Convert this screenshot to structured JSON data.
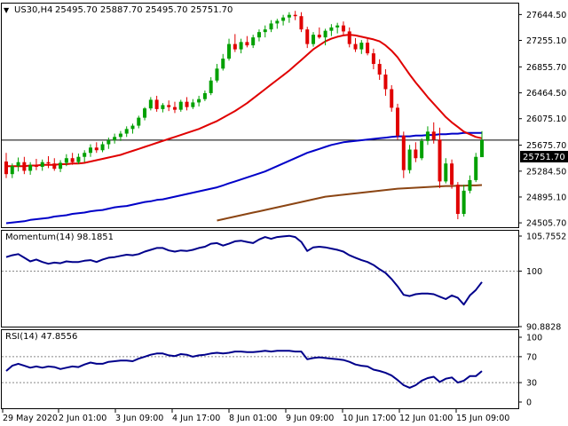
{
  "header": {
    "symbol_label": "US30,H4",
    "ohlc_label": "25495.70 25887.70 25495.70 25751.70"
  },
  "current_price_label": "25751.70",
  "colors": {
    "bull": "#00a000",
    "bear": "#e00000",
    "ma_fast": "#e00000",
    "ma_mid": "#0000c8",
    "ma_slow": "#8b4513",
    "indicator": "#00008b",
    "price_tag_bg": "#000000",
    "price_tag_text": "#ffffff"
  },
  "chart_data": [
    {
      "type": "candlestick",
      "title": "US30,H4",
      "ylim": [
        24440,
        27810
      ],
      "y_ticks": [
        "27644.50",
        "27255.10",
        "26855.70",
        "26464.50",
        "26075.10",
        "25675.70",
        "25284.50",
        "24895.10",
        "24505.70"
      ],
      "x_ticks": [
        "29 May 2020",
        "2 Jun 01:00",
        "3 Jun 09:00",
        "4 Jun 17:00",
        "8 Jun 01:00",
        "9 Jun 09:00",
        "10 Jun 17:00",
        "12 Jun 01:00",
        "15 Jun 09:00"
      ],
      "ohlc": [
        [
          25430,
          25560,
          25180,
          25240
        ],
        [
          25240,
          25400,
          25180,
          25360
        ],
        [
          25360,
          25490,
          25280,
          25420
        ],
        [
          25420,
          25500,
          25240,
          25290
        ],
        [
          25290,
          25420,
          25230,
          25380
        ],
        [
          25380,
          25470,
          25300,
          25350
        ],
        [
          25350,
          25460,
          25290,
          25420
        ],
        [
          25420,
          25510,
          25330,
          25400
        ],
        [
          25400,
          25480,
          25290,
          25320
        ],
        [
          25320,
          25450,
          25270,
          25410
        ],
        [
          25410,
          25540,
          25360,
          25480
        ],
        [
          25480,
          25560,
          25380,
          25420
        ],
        [
          25420,
          25550,
          25390,
          25500
        ],
        [
          25500,
          25600,
          25420,
          25560
        ],
        [
          25560,
          25690,
          25500,
          25640
        ],
        [
          25640,
          25720,
          25560,
          25600
        ],
        [
          25600,
          25730,
          25570,
          25690
        ],
        [
          25690,
          25790,
          25620,
          25750
        ],
        [
          25750,
          25850,
          25700,
          25800
        ],
        [
          25800,
          25890,
          25740,
          25850
        ],
        [
          25850,
          25960,
          25800,
          25920
        ],
        [
          25920,
          26000,
          25850,
          25970
        ],
        [
          25970,
          26120,
          25930,
          26090
        ],
        [
          26090,
          26250,
          26050,
          26230
        ],
        [
          26230,
          26400,
          26200,
          26360
        ],
        [
          26360,
          26420,
          26180,
          26220
        ],
        [
          26220,
          26310,
          26170,
          26280
        ],
        [
          26280,
          26350,
          26190,
          26250
        ],
        [
          26250,
          26330,
          26160,
          26210
        ],
        [
          26210,
          26360,
          26180,
          26330
        ],
        [
          26330,
          26400,
          26200,
          26250
        ],
        [
          26250,
          26370,
          26220,
          26320
        ],
        [
          26320,
          26420,
          26260,
          26370
        ],
        [
          26370,
          26500,
          26340,
          26460
        ],
        [
          26460,
          26700,
          26430,
          26650
        ],
        [
          26650,
          26900,
          26620,
          26830
        ],
        [
          26830,
          27050,
          26800,
          26980
        ],
        [
          26980,
          27280,
          26950,
          27200
        ],
        [
          27200,
          27350,
          27080,
          27120
        ],
        [
          27120,
          27280,
          27060,
          27230
        ],
        [
          27230,
          27320,
          27150,
          27180
        ],
        [
          27180,
          27340,
          27140,
          27300
        ],
        [
          27300,
          27420,
          27240,
          27380
        ],
        [
          27380,
          27480,
          27300,
          27420
        ],
        [
          27420,
          27560,
          27380,
          27510
        ],
        [
          27510,
          27580,
          27430,
          27550
        ],
        [
          27550,
          27640,
          27480,
          27600
        ],
        [
          27600,
          27680,
          27520,
          27640
        ],
        [
          27640,
          27700,
          27560,
          27620
        ],
        [
          27620,
          27680,
          27380,
          27420
        ],
        [
          27420,
          27460,
          27140,
          27200
        ],
        [
          27200,
          27380,
          27160,
          27340
        ],
        [
          27340,
          27450,
          27280,
          27300
        ],
        [
          27300,
          27430,
          27180,
          27400
        ],
        [
          27400,
          27500,
          27320,
          27450
        ],
        [
          27450,
          27520,
          27360,
          27480
        ],
        [
          27480,
          27540,
          27330,
          27390
        ],
        [
          27390,
          27450,
          27150,
          27200
        ],
        [
          27200,
          27290,
          27080,
          27120
        ],
        [
          27120,
          27260,
          27050,
          27220
        ],
        [
          27220,
          27290,
          27030,
          27060
        ],
        [
          27060,
          27130,
          26820,
          26900
        ],
        [
          26900,
          26970,
          26660,
          26740
        ],
        [
          26740,
          26820,
          26420,
          26520
        ],
        [
          26520,
          26580,
          26180,
          26240
        ],
        [
          26240,
          26300,
          25760,
          25820
        ],
        [
          25820,
          25880,
          25180,
          25300
        ],
        [
          25300,
          25680,
          25250,
          25610
        ],
        [
          25610,
          25720,
          25420,
          25480
        ],
        [
          25480,
          25780,
          25450,
          25740
        ],
        [
          25740,
          25960,
          25680,
          25880
        ],
        [
          25880,
          26020,
          25700,
          25760
        ],
        [
          25760,
          25940,
          25030,
          25130
        ],
        [
          25130,
          25480,
          25100,
          25400
        ],
        [
          25400,
          25460,
          25020,
          25080
        ],
        [
          25080,
          25120,
          24560,
          24640
        ],
        [
          24640,
          25080,
          24600,
          24990
        ],
        [
          24990,
          25220,
          24950,
          25150
        ],
        [
          25150,
          25560,
          25120,
          25500
        ],
        [
          25495.7,
          25887.7,
          25495.7,
          25751.7
        ]
      ],
      "ma_fast": [
        25360,
        25360,
        25360,
        25360,
        25370,
        25370,
        25380,
        25380,
        25380,
        25390,
        25390,
        25400,
        25400,
        25410,
        25430,
        25450,
        25470,
        25490,
        25510,
        25530,
        25560,
        25590,
        25620,
        25650,
        25680,
        25710,
        25740,
        25770,
        25800,
        25830,
        25860,
        25890,
        25920,
        25960,
        26000,
        26040,
        26090,
        26140,
        26190,
        26250,
        26310,
        26380,
        26450,
        26520,
        26590,
        26660,
        26730,
        26800,
        26880,
        26960,
        27040,
        27120,
        27180,
        27240,
        27280,
        27310,
        27330,
        27340,
        27330,
        27310,
        27290,
        27270,
        27240,
        27180,
        27100,
        27000,
        26870,
        26740,
        26620,
        26510,
        26400,
        26300,
        26200,
        26100,
        26020,
        25950,
        25880,
        25840,
        25800,
        25780
      ],
      "ma_mid": [
        24500,
        24510,
        24520,
        24530,
        24550,
        24560,
        24570,
        24580,
        24600,
        24610,
        24620,
        24640,
        24650,
        24660,
        24680,
        24690,
        24700,
        24720,
        24740,
        24750,
        24760,
        24780,
        24800,
        24820,
        24830,
        24850,
        24860,
        24880,
        24900,
        24920,
        24940,
        24960,
        24980,
        25000,
        25020,
        25040,
        25070,
        25100,
        25130,
        25160,
        25190,
        25220,
        25250,
        25280,
        25320,
        25360,
        25400,
        25440,
        25480,
        25520,
        25560,
        25590,
        25620,
        25650,
        25680,
        25700,
        25720,
        25730,
        25740,
        25750,
        25760,
        25770,
        25780,
        25790,
        25800,
        25810,
        25810,
        25810,
        25820,
        25820,
        25830,
        25830,
        25840,
        25840,
        25850,
        25850,
        25860,
        25860,
        25860,
        25860
      ],
      "ma_slow_start_index": 35,
      "ma_slow": [
        24540,
        24560,
        24580,
        24600,
        24620,
        24640,
        24660,
        24680,
        24700,
        24720,
        24740,
        24760,
        24780,
        24800,
        24820,
        24840,
        24860,
        24880,
        24900,
        24910,
        24920,
        24930,
        24940,
        24950,
        24960,
        24970,
        24980,
        24990,
        25000,
        25010,
        25020,
        25025,
        25030,
        25035,
        25040,
        25045,
        25050,
        25055,
        25060,
        25060,
        25065,
        25065,
        25070,
        25070,
        25075
      ]
    },
    {
      "type": "line",
      "title": "Momentum(14) 98.1851",
      "ylim": [
        90.8828,
        105.7552
      ],
      "y_ticks": [
        "105.7552",
        "100",
        "90.8828"
      ],
      "reference_lines": [
        100
      ],
      "values": [
        102.3,
        102.6,
        102.8,
        102.2,
        101.6,
        101.9,
        101.5,
        101.2,
        101.4,
        101.3,
        101.6,
        101.5,
        101.5,
        101.7,
        101.8,
        101.5,
        101.9,
        102.2,
        102.3,
        102.5,
        102.7,
        102.6,
        102.8,
        103.2,
        103.5,
        103.8,
        103.8,
        103.4,
        103.2,
        103.4,
        103.3,
        103.5,
        103.8,
        104.0,
        104.5,
        104.6,
        104.2,
        104.5,
        104.9,
        105.0,
        104.8,
        104.6,
        105.2,
        105.6,
        105.3,
        105.6,
        105.7,
        105.8,
        105.6,
        104.8,
        103.3,
        103.9,
        104.0,
        103.9,
        103.7,
        103.5,
        103.2,
        102.6,
        102.2,
        101.8,
        101.5,
        101.0,
        100.3,
        99.7,
        98.7,
        97.5,
        96.1,
        95.9,
        96.2,
        96.3,
        96.3,
        96.2,
        95.8,
        95.4,
        96.0,
        95.6,
        94.5,
        96.0,
        96.9,
        98.2
      ]
    },
    {
      "type": "line",
      "title": "RSI(14) 47.8556",
      "ylim": [
        0,
        100
      ],
      "y_ticks": [
        "100",
        "70",
        "30",
        "0"
      ],
      "reference_lines": [
        70,
        30
      ],
      "values": [
        48,
        56,
        59,
        56,
        53,
        55,
        53,
        55,
        54,
        51,
        53,
        55,
        54,
        58,
        61,
        59,
        59,
        62,
        63,
        64,
        64,
        63,
        67,
        70,
        73,
        75,
        75,
        72,
        71,
        74,
        73,
        70,
        72,
        73,
        75,
        76,
        75,
        76,
        78,
        78,
        77,
        77,
        78,
        79,
        78,
        79,
        79,
        79,
        78,
        78,
        66,
        68,
        69,
        68,
        67,
        66,
        65,
        62,
        58,
        56,
        55,
        50,
        48,
        45,
        41,
        34,
        26,
        22,
        26,
        33,
        37,
        39,
        31,
        36,
        38,
        30,
        33,
        40,
        40,
        47.86
      ]
    }
  ]
}
